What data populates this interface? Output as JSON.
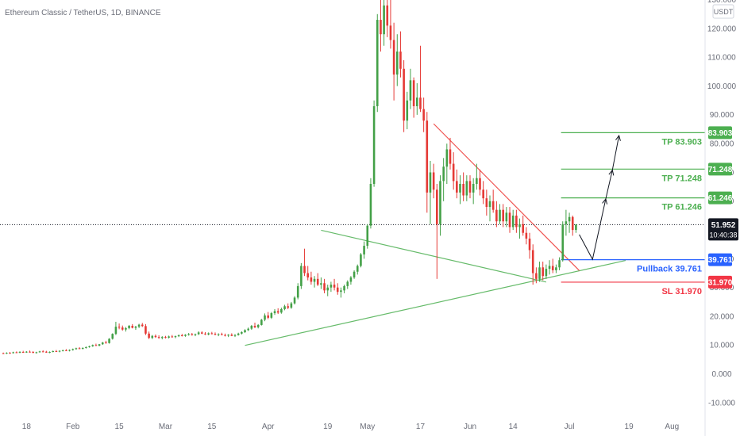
{
  "header": {
    "symbol_title": "Ethereum Classic / TetherUS, 1D, BINANCE"
  },
  "price_axis": {
    "currency_badge": "USDT"
  },
  "colors": {
    "up": "#26a69a",
    "down": "#ef5350",
    "up_candle": "#43a047",
    "down_candle": "#e53935",
    "tp_line": "#4caf50",
    "tp_tag": "#4caf50",
    "pullback": "#2962ff",
    "sl": "#f23645",
    "trend_green": "#66bb6a",
    "trend_red": "#ef5350",
    "last_price_tag": "#131722",
    "axis_text": "#6a6d78"
  },
  "chart_data": {
    "type": "candlestick",
    "title": "Ethereum Classic / TetherUS, 1D, BINANCE",
    "y_ticks": [
      -10,
      0,
      10,
      20,
      30,
      40,
      50,
      60,
      70,
      80,
      90,
      100,
      110,
      120,
      130
    ],
    "y_tick_labels": [
      "-10.000",
      "0.000",
      "10.000",
      "20.000",
      "30.000",
      "40.000",
      "50.000",
      "60.000",
      "70.000",
      "80.000",
      "90.000",
      "100.000",
      "110.000",
      "120.000",
      "130.000"
    ],
    "ylim": [
      -12,
      132
    ],
    "x_ticks": [
      {
        "day": 18,
        "label": "18"
      },
      {
        "day": 32,
        "label": "Feb"
      },
      {
        "day": 46,
        "label": "15"
      },
      {
        "day": 60,
        "label": "Mar"
      },
      {
        "day": 74,
        "label": "15"
      },
      {
        "day": 91,
        "label": "Apr"
      },
      {
        "day": 109,
        "label": "19"
      },
      {
        "day": 121,
        "label": "May"
      },
      {
        "day": 137,
        "label": "17"
      },
      {
        "day": 152,
        "label": "Jun"
      },
      {
        "day": 165,
        "label": "14"
      },
      {
        "day": 182,
        "label": "Jul"
      },
      {
        "day": 200,
        "label": "19"
      },
      {
        "day": 213,
        "label": "Aug"
      }
    ],
    "xlim": [
      10,
      223
    ],
    "candles": [
      [
        11,
        7.3,
        7.5,
        7.0,
        7.2
      ],
      [
        12,
        7.2,
        7.6,
        7.0,
        7.4
      ],
      [
        13,
        7.4,
        7.7,
        7.1,
        7.3
      ],
      [
        14,
        7.3,
        7.8,
        7.2,
        7.6
      ],
      [
        15,
        7.6,
        7.9,
        7.3,
        7.5
      ],
      [
        16,
        7.5,
        8.0,
        7.3,
        7.7
      ],
      [
        17,
        7.7,
        8.1,
        7.4,
        7.6
      ],
      [
        18,
        7.6,
        8.0,
        7.4,
        7.8
      ],
      [
        19,
        7.8,
        8.2,
        7.5,
        7.7
      ],
      [
        20,
        7.7,
        8.0,
        7.3,
        7.4
      ],
      [
        21,
        7.4,
        7.8,
        7.2,
        7.6
      ],
      [
        22,
        7.6,
        8.1,
        7.5,
        7.9
      ],
      [
        23,
        7.9,
        8.3,
        7.6,
        7.8
      ],
      [
        24,
        7.8,
        8.1,
        7.4,
        7.5
      ],
      [
        25,
        7.5,
        7.9,
        7.3,
        7.7
      ],
      [
        26,
        7.7,
        8.2,
        7.6,
        8.0
      ],
      [
        27,
        8.0,
        8.4,
        7.8,
        7.9
      ],
      [
        28,
        7.9,
        8.3,
        7.6,
        8.1
      ],
      [
        29,
        8.1,
        8.5,
        7.9,
        8.3
      ],
      [
        30,
        8.3,
        8.7,
        8.0,
        8.2
      ],
      [
        31,
        8.2,
        8.6,
        7.9,
        8.4
      ],
      [
        32,
        8.4,
        8.9,
        8.2,
        8.7
      ],
      [
        33,
        8.7,
        9.2,
        8.5,
        9.0
      ],
      [
        34,
        9.0,
        9.4,
        8.7,
        8.9
      ],
      [
        35,
        8.9,
        9.3,
        8.6,
        9.1
      ],
      [
        36,
        9.1,
        9.6,
        8.9,
        9.4
      ],
      [
        37,
        9.4,
        9.9,
        9.2,
        9.7
      ],
      [
        38,
        9.7,
        10.3,
        9.5,
        10.1
      ],
      [
        39,
        10.1,
        10.6,
        9.8,
        9.9
      ],
      [
        40,
        9.9,
        10.5,
        9.7,
        10.4
      ],
      [
        41,
        10.4,
        11.2,
        10.2,
        11.0
      ],
      [
        42,
        11.0,
        11.6,
        10.6,
        10.8
      ],
      [
        43,
        10.8,
        12.5,
        10.6,
        12.3
      ],
      [
        44,
        12.3,
        14.2,
        12.0,
        14.0
      ],
      [
        45,
        14.0,
        18.2,
        13.6,
        16.5
      ],
      [
        46,
        16.5,
        17.6,
        15.6,
        16.2
      ],
      [
        47,
        16.2,
        16.9,
        15.1,
        15.5
      ],
      [
        48,
        15.5,
        16.4,
        14.8,
        16.0
      ],
      [
        49,
        16.0,
        17.1,
        15.6,
        16.8
      ],
      [
        50,
        16.8,
        17.4,
        15.9,
        16.1
      ],
      [
        51,
        16.1,
        16.8,
        15.4,
        16.5
      ],
      [
        52,
        16.5,
        17.5,
        16.0,
        17.2
      ],
      [
        53,
        17.2,
        17.8,
        16.4,
        16.7
      ],
      [
        54,
        16.7,
        17.4,
        13.6,
        14.1
      ],
      [
        55,
        14.1,
        14.8,
        12.2,
        12.6
      ],
      [
        56,
        12.6,
        13.6,
        12.2,
        13.3
      ],
      [
        57,
        13.3,
        13.8,
        12.6,
        12.9
      ],
      [
        58,
        12.9,
        13.5,
        12.3,
        12.6
      ],
      [
        59,
        12.6,
        13.2,
        12.1,
        12.9
      ],
      [
        60,
        12.9,
        13.3,
        12.4,
        12.7
      ],
      [
        61,
        12.7,
        13.4,
        12.4,
        13.1
      ],
      [
        62,
        13.1,
        13.6,
        12.7,
        12.9
      ],
      [
        63,
        12.9,
        13.4,
        12.5,
        13.2
      ],
      [
        64,
        13.2,
        13.8,
        12.9,
        13.5
      ],
      [
        65,
        13.5,
        14.0,
        13.1,
        13.3
      ],
      [
        66,
        13.3,
        13.9,
        13.0,
        13.7
      ],
      [
        67,
        13.7,
        14.3,
        13.4,
        13.9
      ],
      [
        68,
        13.9,
        14.3,
        13.4,
        13.6
      ],
      [
        69,
        13.6,
        14.1,
        13.2,
        13.9
      ],
      [
        70,
        13.9,
        14.9,
        13.6,
        14.5
      ],
      [
        71,
        14.5,
        14.9,
        13.9,
        14.1
      ],
      [
        72,
        14.1,
        14.6,
        13.6,
        13.8
      ],
      [
        73,
        13.8,
        14.5,
        13.5,
        14.2
      ],
      [
        74,
        14.2,
        14.7,
        13.8,
        14.0
      ],
      [
        75,
        14.0,
        14.5,
        13.5,
        13.7
      ],
      [
        76,
        13.7,
        14.2,
        13.2,
        13.9
      ],
      [
        77,
        13.9,
        14.4,
        13.5,
        13.6
      ],
      [
        78,
        13.6,
        14.1,
        13.1,
        13.4
      ],
      [
        79,
        13.4,
        13.9,
        12.9,
        13.7
      ],
      [
        80,
        13.7,
        14.2,
        13.2,
        13.3
      ],
      [
        81,
        13.3,
        13.9,
        12.9,
        13.6
      ],
      [
        82,
        13.6,
        14.4,
        13.4,
        14.1
      ],
      [
        83,
        14.1,
        14.9,
        13.8,
        14.6
      ],
      [
        84,
        14.6,
        15.6,
        14.3,
        15.3
      ],
      [
        85,
        15.3,
        16.2,
        15.0,
        15.8
      ],
      [
        86,
        15.8,
        17.1,
        15.4,
        16.8
      ],
      [
        87,
        16.8,
        17.9,
        16.0,
        16.3
      ],
      [
        88,
        16.3,
        17.4,
        15.9,
        17.1
      ],
      [
        89,
        17.1,
        19.2,
        16.9,
        18.9
      ],
      [
        90,
        18.9,
        21.1,
        18.4,
        20.4
      ],
      [
        91,
        20.4,
        21.6,
        19.1,
        19.6
      ],
      [
        92,
        19.6,
        21.6,
        19.2,
        21.2
      ],
      [
        93,
        21.2,
        22.6,
        20.6,
        21.9
      ],
      [
        94,
        21.9,
        22.9,
        20.9,
        21.4
      ],
      [
        95,
        21.4,
        23.1,
        21.0,
        22.6
      ],
      [
        96,
        22.6,
        24.1,
        22.2,
        23.6
      ],
      [
        97,
        23.6,
        24.6,
        22.6,
        23.1
      ],
      [
        98,
        23.1,
        25.1,
        22.7,
        24.6
      ],
      [
        99,
        24.6,
        27.1,
        24.2,
        26.6
      ],
      [
        100,
        26.6,
        31.6,
        26.0,
        30.6
      ],
      [
        101,
        30.6,
        38.6,
        29.6,
        37.6
      ],
      [
        102,
        37.6,
        43.6,
        34.1,
        35.1
      ],
      [
        103,
        35.1,
        37.6,
        32.6,
        33.6
      ],
      [
        104,
        33.6,
        35.6,
        31.1,
        32.1
      ],
      [
        105,
        32.1,
        34.1,
        30.1,
        33.1
      ],
      [
        106,
        33.1,
        35.1,
        30.6,
        31.1
      ],
      [
        107,
        31.1,
        33.6,
        29.6,
        31.6
      ],
      [
        108,
        31.6,
        33.1,
        28.1,
        29.1
      ],
      [
        109,
        29.1,
        31.1,
        27.1,
        30.1
      ],
      [
        110,
        30.1,
        32.1,
        28.6,
        31.1
      ],
      [
        111,
        31.1,
        33.1,
        29.1,
        30.1
      ],
      [
        112,
        30.1,
        31.6,
        27.6,
        28.6
      ],
      [
        113,
        28.6,
        30.1,
        26.6,
        29.1
      ],
      [
        114,
        29.1,
        31.1,
        28.1,
        30.6
      ],
      [
        115,
        30.6,
        32.6,
        29.6,
        32.1
      ],
      [
        116,
        32.1,
        34.1,
        31.1,
        33.6
      ],
      [
        117,
        33.6,
        36.1,
        33.1,
        35.6
      ],
      [
        118,
        35.6,
        38.1,
        34.6,
        37.6
      ],
      [
        119,
        37.6,
        42.1,
        37.1,
        41.6
      ],
      [
        120,
        41.6,
        46.1,
        40.1,
        44.6
      ],
      [
        121,
        44.6,
        52.1,
        43.6,
        51.6
      ],
      [
        122,
        51.6,
        68.1,
        50.6,
        66.1
      ],
      [
        123,
        66.1,
        95.1,
        65.1,
        93.1
      ],
      [
        124,
        93.1,
        125.1,
        91.1,
        123.1
      ],
      [
        125,
        123.1,
        133.1,
        112.1,
        118.1
      ],
      [
        126,
        118.1,
        131.1,
        114.1,
        128.1
      ],
      [
        127,
        128.1,
        132.1,
        117.1,
        121.1
      ],
      [
        128,
        121.1,
        130.1,
        113.1,
        116.1
      ],
      [
        129,
        116.1,
        122.1,
        95.1,
        104.1
      ],
      [
        130,
        104.1,
        118.1,
        100.1,
        112.1
      ],
      [
        131,
        112.1,
        119.1,
        103.1,
        106.1
      ],
      [
        132,
        106.1,
        109.1,
        84.1,
        88.1
      ],
      [
        133,
        88.1,
        98.1,
        85.1,
        95.1
      ],
      [
        134,
        95.1,
        106.1,
        92.1,
        102.1
      ],
      [
        135,
        102.1,
        103.1,
        89.1,
        93.1
      ],
      [
        136,
        93.1,
        101.1,
        90.1,
        96.1
      ],
      [
        137,
        96.1,
        114.1,
        91.1,
        92.1
      ],
      [
        138,
        92.1,
        96.1,
        84.1,
        88.1
      ],
      [
        139,
        88.1,
        91.1,
        56.1,
        63.1
      ],
      [
        140,
        63.1,
        74.1,
        52.1,
        70.1
      ],
      [
        141,
        70.1,
        73.1,
        61.1,
        64.1
      ],
      [
        142,
        64.1,
        66.1,
        33.1,
        52.1
      ],
      [
        143,
        52.1,
        69.1,
        48.1,
        67.1
      ],
      [
        144,
        67.1,
        75.1,
        60.1,
        72.1
      ],
      [
        145,
        72.1,
        80.1,
        66.1,
        78.1
      ],
      [
        146,
        78.1,
        82.1,
        71.1,
        73.1
      ],
      [
        147,
        73.1,
        77.1,
        64.1,
        67.1
      ],
      [
        148,
        67.1,
        71.1,
        61.1,
        63.1
      ],
      [
        149,
        63.1,
        69.1,
        59.1,
        66.1
      ],
      [
        150,
        66.1,
        70.1,
        60.1,
        62.1
      ],
      [
        151,
        62.1,
        69.1,
        60.1,
        67.1
      ],
      [
        152,
        67.1,
        69.1,
        61.1,
        63.1
      ],
      [
        153,
        63.1,
        68.1,
        59.1,
        66.1
      ],
      [
        154,
        66.1,
        73.1,
        64.1,
        68.1
      ],
      [
        155,
        68.1,
        71.1,
        62.1,
        64.1
      ],
      [
        156,
        64.1,
        67.1,
        59.1,
        61.1
      ],
      [
        157,
        61.1,
        64.1,
        55.1,
        58.1
      ],
      [
        158,
        58.1,
        62.1,
        53.1,
        60.1
      ],
      [
        159,
        60.1,
        64.1,
        56.1,
        57.1
      ],
      [
        160,
        57.1,
        60.1,
        51.1,
        53.1
      ],
      [
        161,
        53.1,
        59.1,
        52.1,
        57.1
      ],
      [
        162,
        57.1,
        59.1,
        51.1,
        53.1
      ],
      [
        163,
        53.1,
        58.1,
        51.1,
        56.1
      ],
      [
        164,
        56.1,
        58.1,
        49.1,
        51.1
      ],
      [
        165,
        51.1,
        57.1,
        50.1,
        55.1
      ],
      [
        166,
        55.1,
        57.1,
        49.1,
        51.1
      ],
      [
        167,
        51.1,
        54.1,
        47.1,
        52.1
      ],
      [
        168,
        52.1,
        55.1,
        48.1,
        49.1
      ],
      [
        169,
        49.1,
        51.1,
        45.1,
        47.1
      ],
      [
        170,
        47.1,
        49.1,
        40.1,
        43.1
      ],
      [
        171,
        43.1,
        45.1,
        31.1,
        35.1
      ],
      [
        172,
        35.1,
        37.1,
        31.6,
        33.1
      ],
      [
        173,
        33.1,
        39.1,
        32.1,
        37.1
      ],
      [
        174,
        37.1,
        39.1,
        32.6,
        34.1
      ],
      [
        175,
        34.1,
        38.1,
        33.1,
        36.6
      ],
      [
        176,
        36.6,
        39.6,
        34.6,
        37.6
      ],
      [
        177,
        37.6,
        40.1,
        35.1,
        36.1
      ],
      [
        178,
        36.1,
        38.1,
        35.1,
        37.1
      ],
      [
        179,
        37.1,
        40.6,
        36.1,
        39.6
      ],
      [
        180,
        39.6,
        53.1,
        39.1,
        52.1
      ],
      [
        181,
        52.1,
        57.1,
        48.1,
        53.1
      ],
      [
        182,
        53.1,
        56.1,
        49.1,
        54.6
      ],
      [
        183,
        54.6,
        55.1,
        48.1,
        50.1
      ],
      [
        184,
        50.1,
        52.1,
        49.1,
        51.952
      ]
    ],
    "last_price": 51.952,
    "last_price_label": "51.952",
    "countdown": "10:40:38",
    "trendlines": [
      {
        "name": "rising-support",
        "color": "green",
        "from": [
          84,
          10.0
        ],
        "to": [
          199,
          39.5
        ]
      },
      {
        "name": "falling-wedge-lower",
        "color": "green",
        "from": [
          107,
          50.0
        ],
        "to": [
          175,
          32.0
        ]
      },
      {
        "name": "falling-wedge-upper",
        "color": "red",
        "from": [
          141,
          87.0
        ],
        "to": [
          185,
          36.0
        ]
      }
    ],
    "levels": [
      {
        "name": "tp3",
        "value": 83.903,
        "label": "TP 83.903",
        "tag": "83.903",
        "color": "tp"
      },
      {
        "name": "tp2",
        "value": 71.248,
        "label": "TP 71.248",
        "tag": "71.248",
        "color": "tp"
      },
      {
        "name": "tp1",
        "value": 61.246,
        "label": "TP 61.246",
        "tag": "61.246",
        "color": "tp"
      },
      {
        "name": "pullback",
        "value": 39.761,
        "label": "Pullback 39.761",
        "tag": "39.761",
        "color": "pullback"
      },
      {
        "name": "sl",
        "value": 31.97,
        "label": "SL 31.970",
        "tag": "31.970",
        "color": "sl"
      }
    ],
    "projection": [
      [
        185,
        48.5
      ],
      [
        189,
        39.9
      ],
      [
        193,
        60.9
      ],
      [
        195,
        70.9
      ],
      [
        197,
        82.9
      ]
    ],
    "grid": false
  }
}
